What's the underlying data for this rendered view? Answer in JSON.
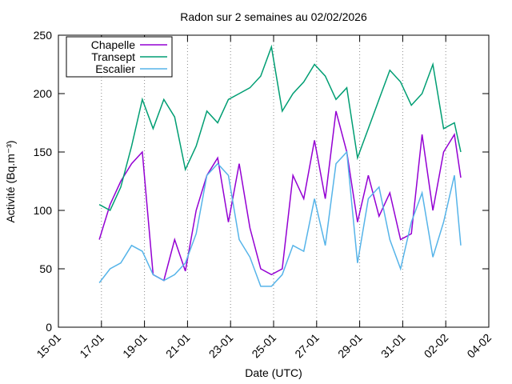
{
  "chart_data": {
    "type": "line",
    "title": "Radon sur 2 semaines au 02/02/2026",
    "x_label": "Date (UTC)",
    "y_label": "Activité (Bq.m⁻³)",
    "x": [
      16.9,
      17.4,
      17.9,
      18.4,
      18.9,
      19.4,
      19.9,
      20.4,
      20.9,
      21.4,
      21.9,
      22.4,
      22.9,
      23.4,
      23.9,
      24.4,
      24.9,
      25.4,
      25.9,
      26.4,
      26.9,
      27.4,
      27.9,
      28.4,
      28.9,
      29.4,
      29.9,
      30.4,
      30.9,
      31.4,
      31.9,
      32.4,
      32.9,
      33.4,
      33.7
    ],
    "series": [
      {
        "name": "Chapelle",
        "color": "#9400d3",
        "values": [
          75,
          105,
          125,
          140,
          150,
          45,
          40,
          75,
          48,
          100,
          130,
          145,
          90,
          140,
          85,
          50,
          45,
          50,
          130,
          110,
          160,
          110,
          185,
          150,
          90,
          130,
          95,
          115,
          75,
          80,
          165,
          100,
          150,
          165,
          128
        ]
      },
      {
        "name": "Transept",
        "color": "#009e73",
        "values": [
          105,
          100,
          120,
          155,
          195,
          170,
          195,
          180,
          135,
          155,
          185,
          175,
          195,
          200,
          205,
          215,
          240,
          185,
          200,
          210,
          225,
          215,
          195,
          205,
          145,
          170,
          195,
          220,
          210,
          190,
          200,
          225,
          170,
          175,
          150
        ]
      },
      {
        "name": "Escalier",
        "color": "#56b4e9",
        "values": [
          38,
          50,
          55,
          70,
          65,
          45,
          40,
          45,
          55,
          80,
          130,
          140,
          130,
          75,
          60,
          35,
          35,
          45,
          70,
          65,
          110,
          70,
          140,
          150,
          55,
          110,
          120,
          75,
          50,
          90,
          115,
          60,
          90,
          130,
          70
        ]
      }
    ],
    "xlim": [
      15,
      35
    ],
    "xticks": [
      {
        "value": 15,
        "label": "15-01"
      },
      {
        "value": 17,
        "label": "17-01"
      },
      {
        "value": 19,
        "label": "19-01"
      },
      {
        "value": 21,
        "label": "21-01"
      },
      {
        "value": 23,
        "label": "23-01"
      },
      {
        "value": 25,
        "label": "25-01"
      },
      {
        "value": 27,
        "label": "27-01"
      },
      {
        "value": 29,
        "label": "29-01"
      },
      {
        "value": 31,
        "label": "31-01"
      },
      {
        "value": 33,
        "label": "02-02"
      },
      {
        "value": 35,
        "label": "04-02"
      }
    ],
    "ylim": [
      0,
      250
    ],
    "yticks": [
      0,
      50,
      100,
      150,
      200,
      250
    ],
    "grid": true,
    "legend": "top-left"
  }
}
